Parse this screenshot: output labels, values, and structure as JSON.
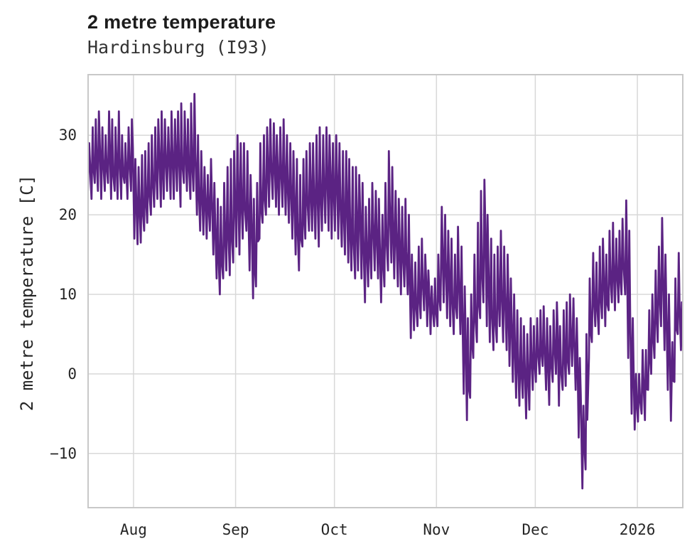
{
  "header": {
    "title": "2 metre temperature",
    "subtitle": "Hardinsburg (I93)"
  },
  "chart_data": {
    "type": "line",
    "title": "2 metre temperature",
    "subtitle": "Hardinsburg (I93)",
    "ylabel": "2 metre temperature [C]",
    "xlabel": "",
    "legend": "none",
    "grid": "on",
    "line_color": "#5b2383",
    "grid_color": "#d8d8d8",
    "border_color": "#c8c8c8",
    "background": "#ffffff",
    "y_ticks": [
      30,
      20,
      10,
      0,
      -10
    ],
    "ylim": [
      -16.9,
      37.7
    ],
    "x_tick_labels": [
      "Aug",
      "Sep",
      "Oct",
      "Nov",
      "Dec",
      "2026"
    ],
    "x_tick_days": [
      14,
      45,
      75,
      106,
      136,
      167
    ],
    "days_span": 181,
    "x_axis_note": "day 0 = left edge (mid-July); ticks mark month starts; 2026 marks Jan 1",
    "start_value": 24.5,
    "end_value": -0.9,
    "daily_low": [
      23,
      22,
      24,
      23,
      22,
      23,
      24,
      22,
      23,
      22,
      22,
      24,
      22,
      23,
      17,
      16.3,
      16.5,
      18,
      19,
      20,
      21,
      22,
      21,
      22,
      23,
      22,
      22,
      23,
      21,
      24,
      23,
      22,
      23,
      20,
      18,
      17.5,
      17,
      18,
      15,
      12,
      10,
      12,
      13,
      12.4,
      14,
      16,
      15,
      17,
      18,
      13,
      9.5,
      11,
      17,
      19,
      20,
      21,
      22,
      21,
      20,
      21,
      20,
      19,
      17,
      15,
      13,
      16,
      17,
      18,
      18,
      17,
      16,
      18,
      19,
      18,
      17,
      18,
      17,
      16,
      15,
      14,
      13,
      12,
      13,
      12,
      9,
      11,
      12,
      13,
      12,
      9,
      11,
      13,
      14,
      12,
      11,
      10,
      11,
      10,
      4.5,
      5.5,
      6,
      7,
      8,
      6,
      5,
      6,
      6,
      8,
      9,
      7,
      6,
      5,
      7,
      5,
      -2.5,
      -5.8,
      -3,
      2,
      4,
      7,
      9,
      6,
      4,
      3,
      4,
      6,
      4,
      3,
      1,
      -1,
      -3,
      -4,
      -3,
      -5.6,
      -4.5,
      -2,
      -1,
      0,
      1,
      -2,
      -3.9,
      -1,
      0,
      -4,
      -2,
      -1.5,
      0,
      1,
      -2,
      -8,
      -14.4,
      -12,
      2,
      4,
      6,
      5,
      7,
      6,
      8,
      9,
      8,
      9,
      10,
      10,
      2,
      -5,
      -7,
      -6,
      -5,
      -5.8,
      -2,
      0,
      2,
      4,
      6,
      3,
      -2,
      -5.9,
      -1,
      5,
      3
    ],
    "daily_high": [
      29,
      31,
      32,
      33,
      31,
      30,
      33,
      32,
      31,
      33,
      30,
      29,
      31,
      32,
      27,
      26,
      27.5,
      28,
      29,
      30,
      31,
      32,
      33,
      32,
      31,
      33,
      32,
      33,
      34,
      33,
      32,
      34,
      35.2,
      30,
      28,
      26,
      25,
      27,
      24,
      22,
      21,
      24,
      26,
      27,
      28,
      30,
      29,
      29,
      28,
      25,
      22,
      24,
      29,
      30,
      31,
      32,
      31.5,
      30,
      31,
      32,
      30,
      29,
      28,
      27,
      25,
      27,
      28,
      29,
      29,
      30,
      31,
      30,
      31,
      30,
      29,
      30,
      29,
      28,
      28,
      27,
      26,
      26,
      25,
      24,
      21,
      22,
      24,
      23,
      22,
      20,
      24,
      28,
      26,
      23,
      22,
      21,
      22,
      20,
      15,
      14,
      16,
      17,
      15,
      13,
      11,
      12,
      15,
      21,
      20,
      18,
      17,
      15,
      18.5,
      16,
      11,
      7,
      10,
      15,
      19,
      23,
      24.4,
      20,
      17,
      15,
      16,
      18,
      16,
      15,
      12,
      10,
      8,
      7,
      6,
      5,
      7,
      6,
      7,
      8,
      8.5,
      7,
      6,
      8,
      9,
      6,
      8,
      9,
      10,
      9.5,
      7,
      2,
      -4,
      5,
      12,
      15.2,
      14,
      16,
      17,
      15,
      18,
      19,
      17,
      18,
      19.5,
      21.8,
      18,
      7,
      0,
      0,
      3,
      3,
      8,
      10,
      13,
      16,
      19.6,
      15,
      10,
      4,
      12,
      15.2,
      9
    ]
  }
}
